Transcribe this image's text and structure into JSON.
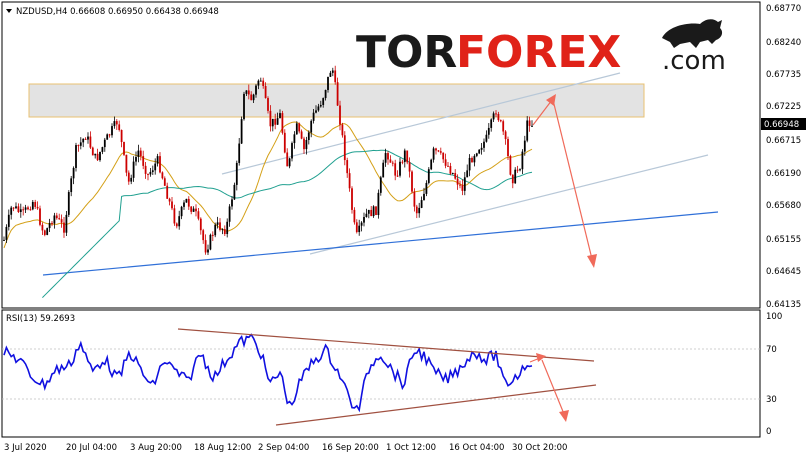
{
  "chart": {
    "header": "NZDUSD,H4  0.66608 0.66950 0.66438 0.66948",
    "symbol": "NZDUSD",
    "timeframe": "H4",
    "ohlc": {
      "open": 0.66608,
      "high": 0.6695,
      "low": 0.66438,
      "close": 0.66948
    },
    "current_price_label": "0.66948",
    "price_axis": [
      "0.68770",
      "0.68240",
      "0.67735",
      "0.67225",
      "0.66715",
      "0.66190",
      "0.65680",
      "0.65155",
      "0.64645",
      "0.64135"
    ],
    "time_axis": [
      "3 Jul 2020",
      "20 Jul 04:00",
      "3 Aug 20:00",
      "18 Aug 12:00",
      "2 Sep 04:00",
      "16 Sep 20:00",
      "1 Oct 12:00",
      "16 Oct 04:00",
      "30 Oct 20:00"
    ]
  },
  "logo": {
    "part1": "TOR",
    "part2": "FOREX",
    "part3": ".com"
  },
  "rsi": {
    "label": "RSI(13) 59.2693",
    "period": 13,
    "value": 59.2693,
    "levels": [
      "100",
      "70",
      "30",
      "0"
    ]
  },
  "colors": {
    "bull_candle": "#000000",
    "bear_candle": "#cc0000",
    "ma_fast": "#d4a017",
    "ma_slow": "#20a090",
    "trend_line": "#3070d8",
    "channel_line": "#b8c8d8",
    "forecast_arrow": "#f06a5a",
    "rsi_line": "#1010e0",
    "rsi_trend": "#a05040",
    "zone_fill": "#d9d9d9",
    "zone_border": "#e8c070"
  }
}
